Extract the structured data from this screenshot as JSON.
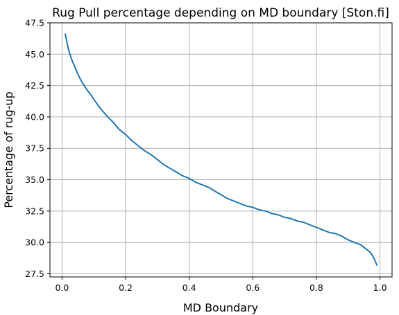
{
  "chart_data": {
    "type": "line",
    "title": "Rug Pull percentage depending on MD boundary [Ston.fi]",
    "xlabel": "MD Boundary",
    "ylabel": "Percentage of rug-up",
    "xlim": [
      -0.038,
      1.038
    ],
    "ylim": [
      27.25,
      47.5
    ],
    "xticks": [
      0.0,
      0.2,
      0.4,
      0.6,
      0.8,
      1.0
    ],
    "xtick_labels": [
      "0.0",
      "0.2",
      "0.4",
      "0.6",
      "0.8",
      "1.0"
    ],
    "yticks": [
      27.5,
      30.0,
      32.5,
      35.0,
      37.5,
      40.0,
      42.5,
      45.0,
      47.5
    ],
    "ytick_labels": [
      "27.5",
      "30.0",
      "32.5",
      "35.0",
      "37.5",
      "40.0",
      "42.5",
      "45.0",
      "47.5"
    ],
    "grid": true,
    "series": [
      {
        "color": "#1f77b4",
        "x": [
          0.01,
          0.02,
          0.03,
          0.04,
          0.05,
          0.06,
          0.07,
          0.08,
          0.09,
          0.1,
          0.12,
          0.14,
          0.16,
          0.18,
          0.2,
          0.22,
          0.24,
          0.26,
          0.28,
          0.3,
          0.32,
          0.34,
          0.36,
          0.38,
          0.4,
          0.42,
          0.44,
          0.46,
          0.48,
          0.5,
          0.52,
          0.54,
          0.56,
          0.58,
          0.6,
          0.62,
          0.64,
          0.66,
          0.68,
          0.7,
          0.72,
          0.74,
          0.76,
          0.78,
          0.8,
          0.82,
          0.84,
          0.86,
          0.88,
          0.9,
          0.92,
          0.94,
          0.95,
          0.96,
          0.97,
          0.98,
          0.99
        ],
        "y": [
          46.6,
          45.4,
          44.6,
          44.0,
          43.4,
          42.9,
          42.5,
          42.1,
          41.8,
          41.4,
          40.7,
          40.1,
          39.6,
          39.0,
          38.6,
          38.1,
          37.7,
          37.3,
          37.0,
          36.6,
          36.2,
          35.9,
          35.6,
          35.3,
          35.1,
          34.8,
          34.6,
          34.4,
          34.1,
          33.8,
          33.5,
          33.3,
          33.1,
          32.9,
          32.8,
          32.6,
          32.5,
          32.3,
          32.2,
          32.0,
          31.9,
          31.7,
          31.6,
          31.4,
          31.2,
          31.0,
          30.8,
          30.7,
          30.5,
          30.2,
          30.0,
          29.8,
          29.6,
          29.4,
          29.2,
          28.8,
          28.2
        ]
      }
    ]
  }
}
